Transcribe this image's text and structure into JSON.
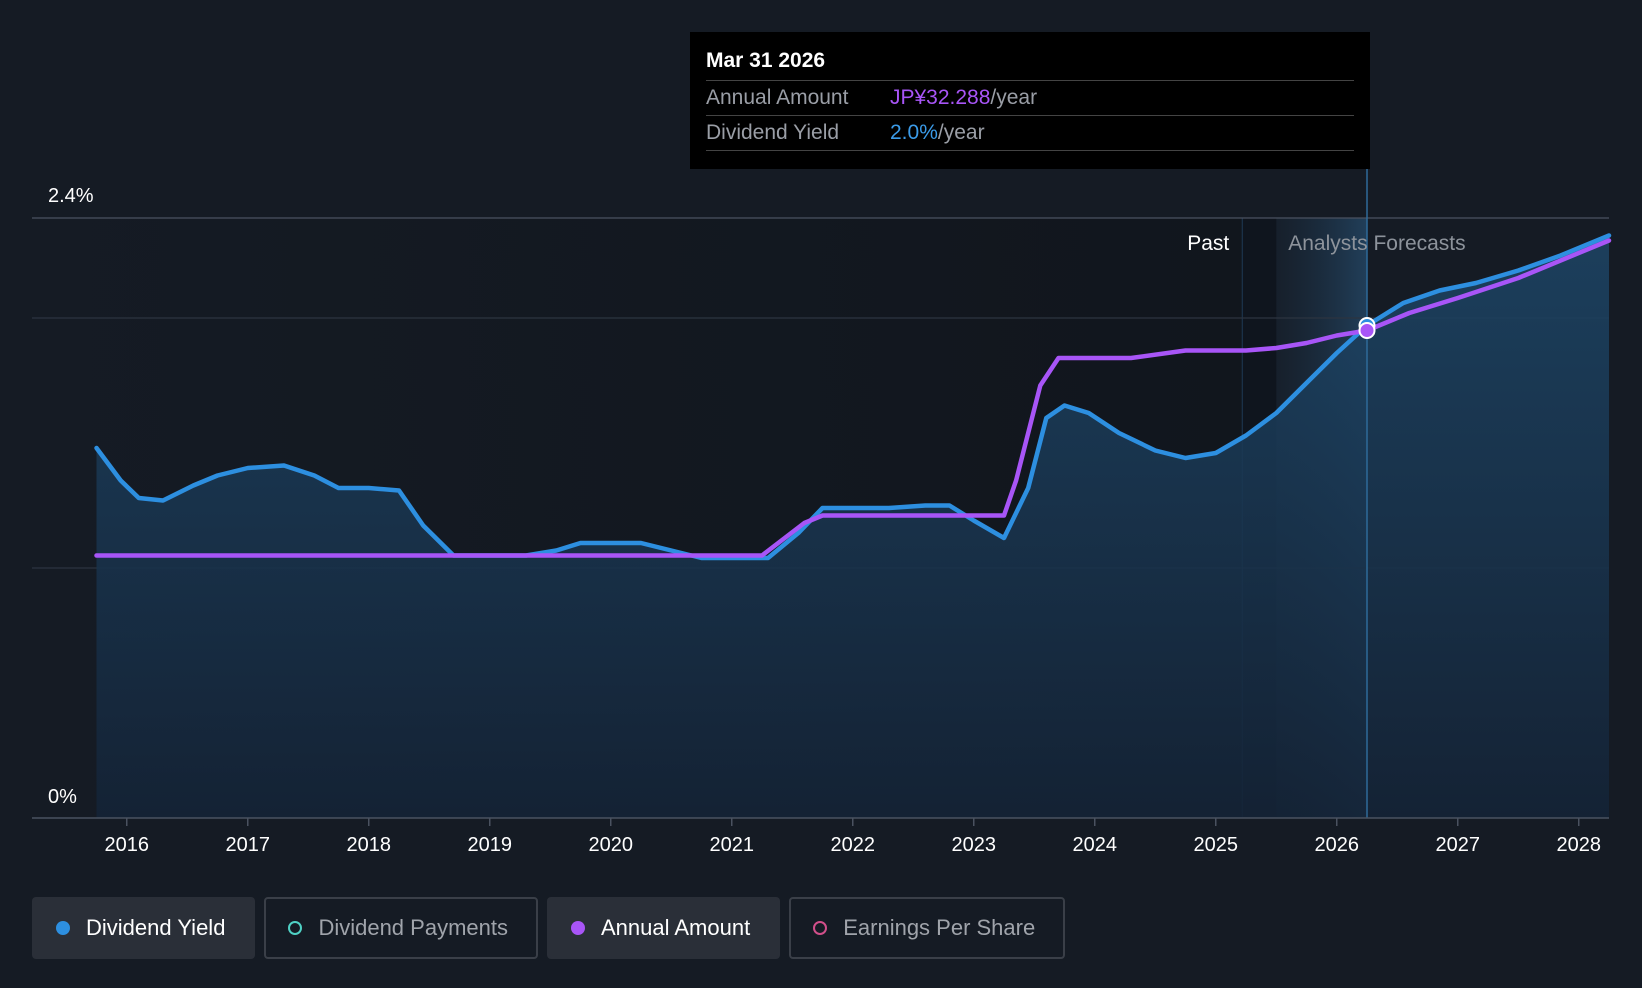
{
  "tooltip": {
    "date": "Mar 31 2026",
    "rows": [
      {
        "key": "Annual Amount",
        "value": "JP¥32.288",
        "unit": "/year"
      },
      {
        "key": "Dividend Yield",
        "value": "2.0%",
        "unit": "/year"
      }
    ]
  },
  "regions": {
    "past": "Past",
    "forecast": "Analysts Forecasts"
  },
  "legend": [
    {
      "label": "Dividend Yield",
      "color": "#2d8fe0",
      "filled": true,
      "active": true
    },
    {
      "label": "Dividend Payments",
      "color": "#4fd1c5",
      "filled": false,
      "active": false
    },
    {
      "label": "Annual Amount",
      "color": "#a855f7",
      "filled": true,
      "active": true
    },
    {
      "label": "Earnings Per Share",
      "color": "#d14f8a",
      "filled": false,
      "active": false
    }
  ],
  "chart_data": {
    "type": "line",
    "title": "",
    "xlabel": "",
    "ylabel": "",
    "xlim": [
      2015.75,
      2028.25
    ],
    "ylim": [
      0,
      2.4
    ],
    "y_tick_labels": [
      "0%",
      "2.4%"
    ],
    "x_ticks": [
      2016,
      2017,
      2018,
      2019,
      2020,
      2021,
      2022,
      2023,
      2024,
      2025,
      2026,
      2027,
      2028
    ],
    "x_tick_labels": [
      "2016",
      "2017",
      "2018",
      "2019",
      "2020",
      "2021",
      "2022",
      "2023",
      "2024",
      "2025",
      "2026",
      "2027",
      "2028"
    ],
    "past_forecast_split": 2025.5,
    "highlight_x": 2026.25,
    "series": [
      {
        "name": "Dividend Yield",
        "color": "#2d8fe0",
        "area": true,
        "x": [
          2015.75,
          2015.95,
          2016.1,
          2016.3,
          2016.55,
          2016.75,
          2017.0,
          2017.3,
          2017.55,
          2017.75,
          2018.0,
          2018.25,
          2018.45,
          2018.7,
          2019.0,
          2019.3,
          2019.55,
          2019.75,
          2020.0,
          2020.25,
          2020.5,
          2020.75,
          2021.0,
          2021.3,
          2021.55,
          2021.75,
          2022.0,
          2022.3,
          2022.6,
          2022.8,
          2023.0,
          2023.25,
          2023.45,
          2023.6,
          2023.75,
          2023.95,
          2024.2,
          2024.5,
          2024.75,
          2025.0,
          2025.25,
          2025.5,
          2025.75,
          2026.0,
          2026.25,
          2026.55,
          2026.85,
          2027.15,
          2027.5,
          2027.85,
          2028.25
        ],
        "values": [
          1.48,
          1.35,
          1.28,
          1.27,
          1.33,
          1.37,
          1.4,
          1.41,
          1.37,
          1.32,
          1.32,
          1.31,
          1.17,
          1.05,
          1.05,
          1.05,
          1.07,
          1.1,
          1.1,
          1.1,
          1.07,
          1.04,
          1.04,
          1.04,
          1.14,
          1.24,
          1.24,
          1.24,
          1.25,
          1.25,
          1.19,
          1.12,
          1.32,
          1.6,
          1.65,
          1.62,
          1.54,
          1.47,
          1.44,
          1.46,
          1.53,
          1.62,
          1.74,
          1.86,
          1.97,
          2.06,
          2.11,
          2.14,
          2.19,
          2.25,
          2.33
        ]
      },
      {
        "name": "Annual Amount",
        "color": "#a855f7",
        "area": false,
        "x": [
          2015.75,
          2016.5,
          2017.5,
          2018.5,
          2019.5,
          2020.5,
          2021.25,
          2021.6,
          2021.75,
          2022.5,
          2023.0,
          2023.25,
          2023.35,
          2023.55,
          2023.7,
          2024.3,
          2024.75,
          2025.25,
          2025.5,
          2025.75,
          2026.0,
          2026.25,
          2026.6,
          2027.0,
          2027.5,
          2028.25
        ],
        "values": [
          1.05,
          1.05,
          1.05,
          1.05,
          1.05,
          1.05,
          1.05,
          1.18,
          1.21,
          1.21,
          1.21,
          1.21,
          1.35,
          1.73,
          1.84,
          1.84,
          1.87,
          1.87,
          1.88,
          1.9,
          1.93,
          1.95,
          2.02,
          2.08,
          2.16,
          2.31
        ]
      }
    ],
    "markers": [
      {
        "series": "Dividend Yield",
        "x": 2026.25,
        "value": 1.97
      },
      {
        "series": "Annual Amount",
        "x": 2026.25,
        "value": 1.95
      }
    ]
  }
}
